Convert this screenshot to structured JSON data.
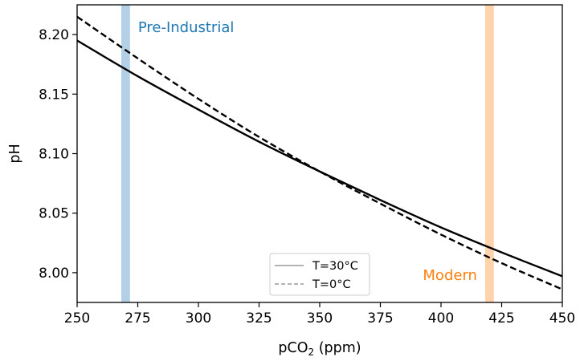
{
  "chart_data": {
    "type": "line",
    "title": "",
    "xlabel": {
      "prefix": "pCO",
      "sub": "2",
      "suffix": " (ppm)"
    },
    "ylabel": "pH",
    "xlim": [
      250,
      450
    ],
    "ylim": [
      7.975,
      8.225
    ],
    "xticks": [
      250,
      275,
      300,
      325,
      350,
      375,
      400,
      425,
      450
    ],
    "yticks": [
      8.0,
      8.05,
      8.1,
      8.15,
      8.2
    ],
    "ytick_labels": [
      "8.00",
      "8.05",
      "8.10",
      "8.15",
      "8.20"
    ],
    "grid": false,
    "legend_placement": "lower-center",
    "series": [
      {
        "name": "T=30°C",
        "style": "solid",
        "color": "#000000",
        "x": [
          250,
          275,
          300,
          325,
          350,
          375,
          400,
          425,
          450
        ],
        "y": [
          8.195,
          8.165,
          8.137,
          8.11,
          8.085,
          8.061,
          8.038,
          8.017,
          7.997
        ]
      },
      {
        "name": "T=0°C",
        "style": "dashed",
        "color": "#000000",
        "x": [
          250,
          275,
          300,
          325,
          350,
          375,
          400,
          425,
          450
        ],
        "y": [
          8.215,
          8.18,
          8.146,
          8.114,
          8.085,
          8.058,
          8.032,
          8.008,
          7.986
        ]
      }
    ],
    "annotations": [
      {
        "text": "Pre-Industrial",
        "x": 270,
        "band": [
          268.2,
          271.8
        ],
        "color": "#1f77b4",
        "band_color": "#b3d1e6"
      },
      {
        "text": "Modern",
        "x": 420,
        "band": [
          418.2,
          421.8
        ],
        "color": "#ff7f0e",
        "band_color": "#ffd4ad"
      }
    ]
  }
}
